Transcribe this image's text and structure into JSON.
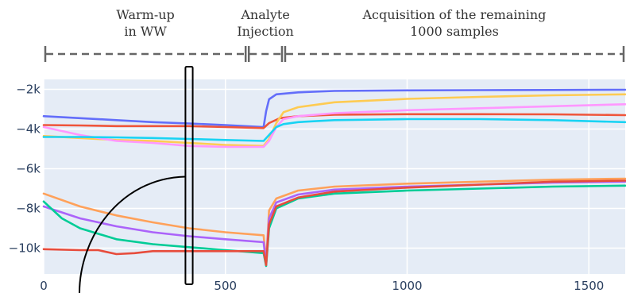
{
  "chart_data": {
    "type": "line",
    "title": "",
    "xlabel": "",
    "ylabel": "",
    "xlim": [
      0,
      1600
    ],
    "ylim": [
      -11300,
      -1500
    ],
    "grid": true,
    "x_ticks": [
      0,
      500,
      1000,
      1500
    ],
    "x_tick_labels": [
      "0",
      "500",
      "1000",
      "1500"
    ],
    "y_ticks": [
      -2000,
      -4000,
      -6000,
      -8000,
      -10000
    ],
    "y_tick_labels": [
      "−2k",
      "−4k",
      "−6k",
      "−8k",
      "−10k"
    ],
    "phases": [
      {
        "lines": [
          "Warm-up",
          "in WW"
        ],
        "x_start": 0,
        "x_end": 560
      },
      {
        "lines": [
          "Analyte",
          "Injection"
        ],
        "x_start": 560,
        "x_end": 660
      },
      {
        "lines": [
          "Acquisition of the remaining",
          "1000 samples"
        ],
        "x_start": 660,
        "x_end": 1600
      }
    ],
    "highlight": {
      "x_start": 390,
      "x_end": 410
    },
    "colors": {
      "plot_bg": "#e5ecf6",
      "grid": "#ffffff",
      "phase_bar": "#666666"
    },
    "series": [
      {
        "color": "#636efa",
        "x": [
          0,
          100,
          200,
          300,
          400,
          500,
          605,
          612,
          620,
          640,
          700,
          800,
          1000,
          1200,
          1400,
          1600
        ],
        "y": [
          -3350,
          -3450,
          -3550,
          -3650,
          -3720,
          -3800,
          -3900,
          -3100,
          -2500,
          -2250,
          -2150,
          -2080,
          -2050,
          -2040,
          -2030,
          -2020
        ]
      },
      {
        "color": "#ef553b",
        "x": [
          0,
          100,
          200,
          300,
          400,
          500,
          605,
          620,
          650,
          700,
          800,
          1000,
          1200,
          1400,
          1600
        ],
        "y": [
          -3800,
          -3820,
          -3850,
          -3850,
          -3850,
          -3900,
          -3950,
          -3700,
          -3450,
          -3350,
          -3280,
          -3250,
          -3250,
          -3260,
          -3300
        ]
      },
      {
        "color": "#fecb52",
        "x": [
          0,
          100,
          200,
          300,
          400,
          500,
          605,
          620,
          640,
          660,
          700,
          800,
          1000,
          1200,
          1400,
          1600
        ],
        "y": [
          -4350,
          -4450,
          -4550,
          -4600,
          -4700,
          -4800,
          -4850,
          -4500,
          -3700,
          -3150,
          -2900,
          -2650,
          -2480,
          -2380,
          -2300,
          -2250
        ]
      },
      {
        "color": "#ff97ff",
        "x": [
          0,
          100,
          200,
          300,
          400,
          500,
          605,
          620,
          640,
          660,
          700,
          800,
          1000,
          1200,
          1400,
          1600
        ],
        "y": [
          -3900,
          -4300,
          -4600,
          -4700,
          -4850,
          -4900,
          -4900,
          -4600,
          -3900,
          -3500,
          -3350,
          -3200,
          -3050,
          -2950,
          -2850,
          -2750
        ]
      },
      {
        "color": "#19d3f3",
        "x": [
          0,
          100,
          200,
          300,
          400,
          500,
          605,
          620,
          640,
          660,
          700,
          800,
          1000,
          1200,
          1400,
          1600
        ],
        "y": [
          -4400,
          -4400,
          -4420,
          -4450,
          -4500,
          -4550,
          -4600,
          -4300,
          -3900,
          -3750,
          -3650,
          -3550,
          -3500,
          -3500,
          -3550,
          -3650
        ]
      },
      {
        "color": "#ffa15a",
        "x": [
          0,
          100,
          200,
          300,
          400,
          500,
          605,
          612,
          620,
          640,
          700,
          800,
          1000,
          1200,
          1400,
          1600
        ],
        "y": [
          -7250,
          -7900,
          -8350,
          -8700,
          -9000,
          -9200,
          -9350,
          -10700,
          -8100,
          -7500,
          -7100,
          -6900,
          -6750,
          -6650,
          -6550,
          -6500
        ]
      },
      {
        "color": "#ab63fa",
        "x": [
          0,
          100,
          200,
          300,
          400,
          500,
          605,
          612,
          620,
          640,
          700,
          800,
          1000,
          1200,
          1400,
          1600
        ],
        "y": [
          -7900,
          -8500,
          -8900,
          -9200,
          -9400,
          -9550,
          -9700,
          -10800,
          -8500,
          -7700,
          -7300,
          -7050,
          -6900,
          -6800,
          -6700,
          -6650
        ]
      },
      {
        "color": "#00cc96",
        "x": [
          0,
          50,
          100,
          200,
          300,
          400,
          500,
          605,
          612,
          620,
          640,
          700,
          800,
          1000,
          1200,
          1400,
          1600
        ],
        "y": [
          -7650,
          -8500,
          -9000,
          -9550,
          -9800,
          -9950,
          -10100,
          -10250,
          -10900,
          -9000,
          -8000,
          -7500,
          -7250,
          -7100,
          -7000,
          -6900,
          -6850
        ]
      },
      {
        "color": "#e74c3c",
        "x": [
          0,
          100,
          150,
          200,
          250,
          300,
          400,
          500,
          605,
          612,
          620,
          640,
          700,
          800,
          1000,
          1200,
          1400,
          1600
        ],
        "y": [
          -10050,
          -10100,
          -10100,
          -10300,
          -10250,
          -10150,
          -10150,
          -10150,
          -10150,
          -10850,
          -8800,
          -7900,
          -7450,
          -7150,
          -6950,
          -6800,
          -6650,
          -6600
        ]
      }
    ]
  }
}
